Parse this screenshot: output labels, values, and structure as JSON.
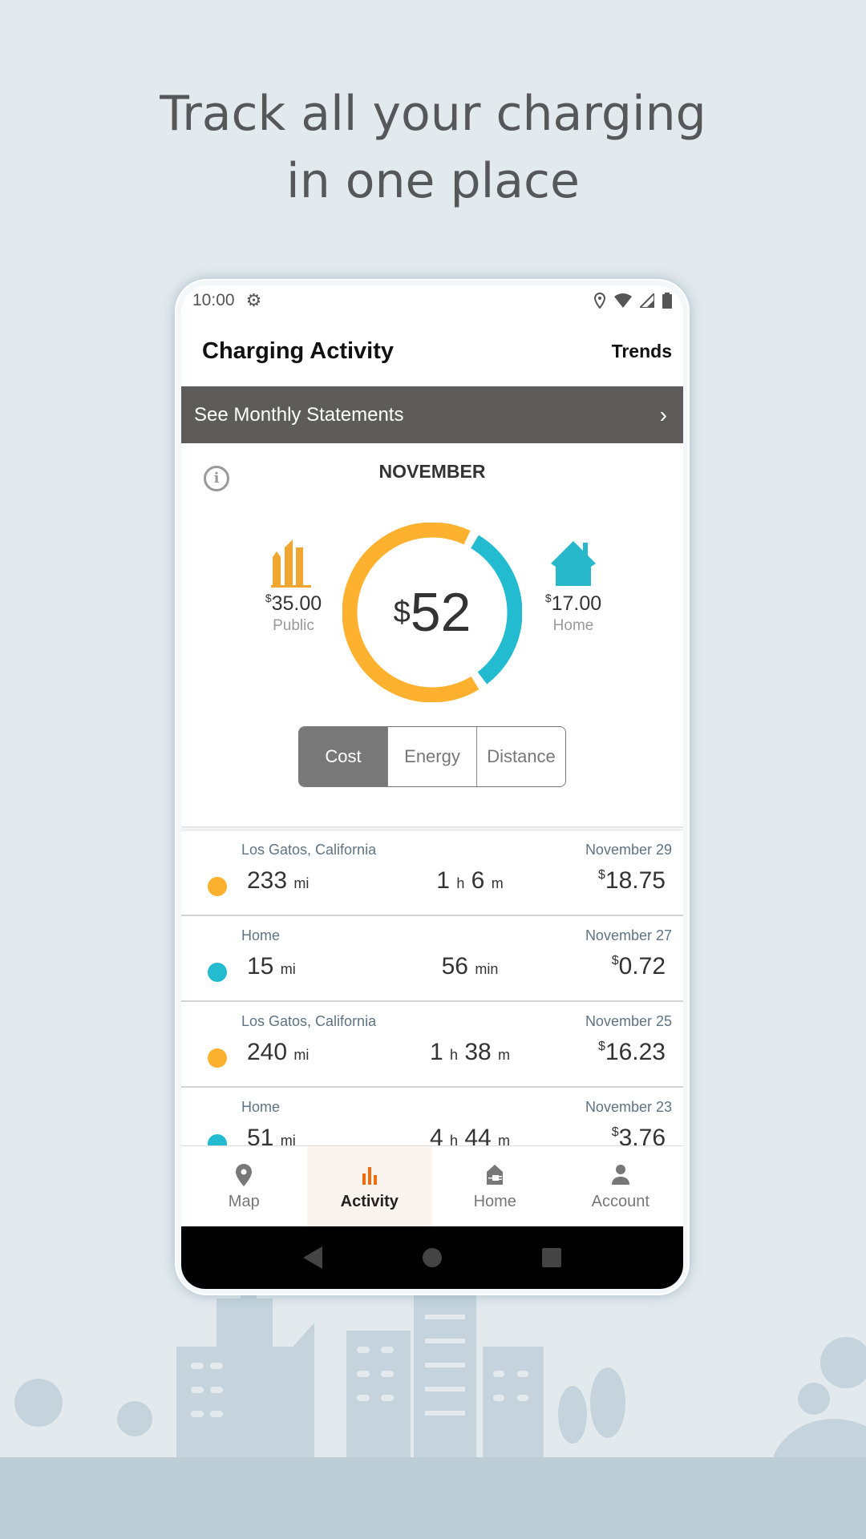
{
  "headline": {
    "line1": "Track all your charging",
    "line2": "in one place"
  },
  "status_bar": {
    "time": "10:00",
    "icons": [
      "gear-icon",
      "location-icon",
      "wifi-icon",
      "signal-icon",
      "battery-icon"
    ]
  },
  "header": {
    "title": "Charging Activity",
    "trends_label": "Trends"
  },
  "statements_bar": {
    "label": "See Monthly Statements",
    "chevron": "›"
  },
  "summary": {
    "month": "NOVEMBER",
    "info_glyph": "i",
    "currency": "$",
    "total": "52",
    "public": {
      "amount": "35.00",
      "label": "Public",
      "value": 35,
      "color": "#FDB12E"
    },
    "home": {
      "amount": "17.00",
      "label": "Home",
      "value": 17,
      "color": "#22BBD0"
    },
    "modes": [
      "Cost",
      "Energy",
      "Distance"
    ],
    "selected_mode": "Cost"
  },
  "sessions": [
    {
      "location": "Los Gatos, California",
      "date": "November 29",
      "type": "public",
      "distance": "233",
      "distance_unit": "mi",
      "dur_h": "1",
      "dur_m": "6",
      "cost": "18.75"
    },
    {
      "location": "Home",
      "date": "November 27",
      "type": "home",
      "distance": "15",
      "distance_unit": "mi",
      "dur_min": "56",
      "cost": "0.72"
    },
    {
      "location": "Los Gatos, California",
      "date": "November 25",
      "type": "public",
      "distance": "240",
      "distance_unit": "mi",
      "dur_h": "1",
      "dur_m": "38",
      "cost": "16.23"
    },
    {
      "location": "Home",
      "date": "November 23",
      "type": "home",
      "distance": "51",
      "distance_unit": "mi",
      "dur_h": "4",
      "dur_m": "44",
      "cost": "3.76"
    }
  ],
  "units": {
    "h": "h",
    "m": "m",
    "min": "min"
  },
  "bottom_nav": [
    {
      "label": "Map",
      "icon": "map-pin-icon"
    },
    {
      "label": "Activity",
      "icon": "bar-chart-icon",
      "active": true
    },
    {
      "label": "Home",
      "icon": "home-charger-icon"
    },
    {
      "label": "Account",
      "icon": "person-icon"
    }
  ],
  "colors": {
    "active_nav": "#F26B10",
    "bar": "#5D5C5A"
  }
}
